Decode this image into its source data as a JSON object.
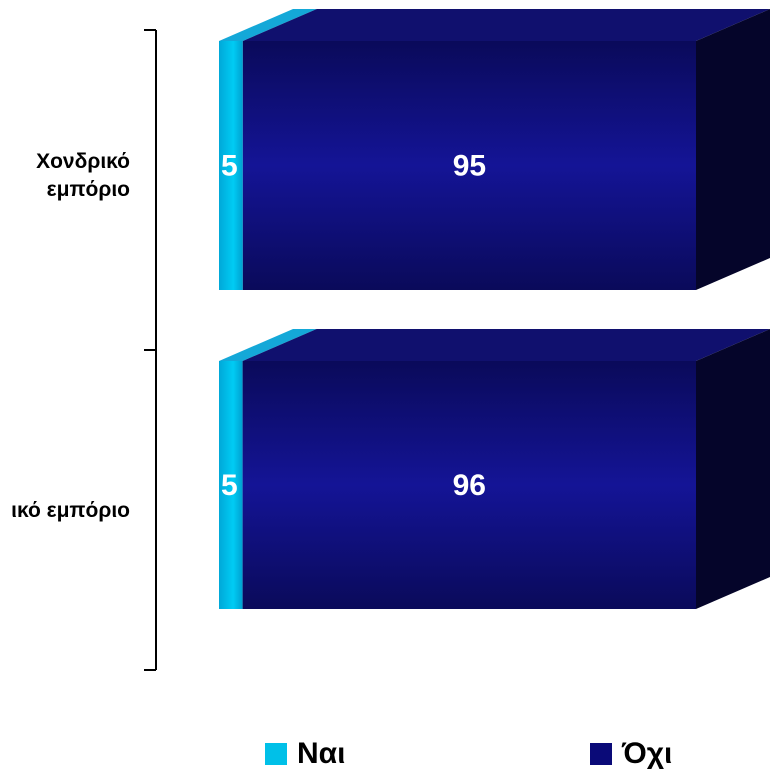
{
  "chart_data": {
    "type": "bar",
    "orientation": "horizontal",
    "stacked": true,
    "percent_stacked": true,
    "three_d": true,
    "categories": [
      "Χονδρικό εμπόριο",
      "Λιανικό εμπόριο"
    ],
    "category_label_lines": [
      [
        "Χονδρικό",
        "εμπόριο"
      ],
      [
        "ικό εμπόριο"
      ]
    ],
    "series": [
      {
        "name": "Ναι",
        "values": [
          5,
          5
        ],
        "color": "#00c0e8"
      },
      {
        "name": "Όχι",
        "values": [
          95,
          96
        ],
        "color": "#0a0a78"
      }
    ],
    "legend_position": "bottom",
    "grid": false
  }
}
